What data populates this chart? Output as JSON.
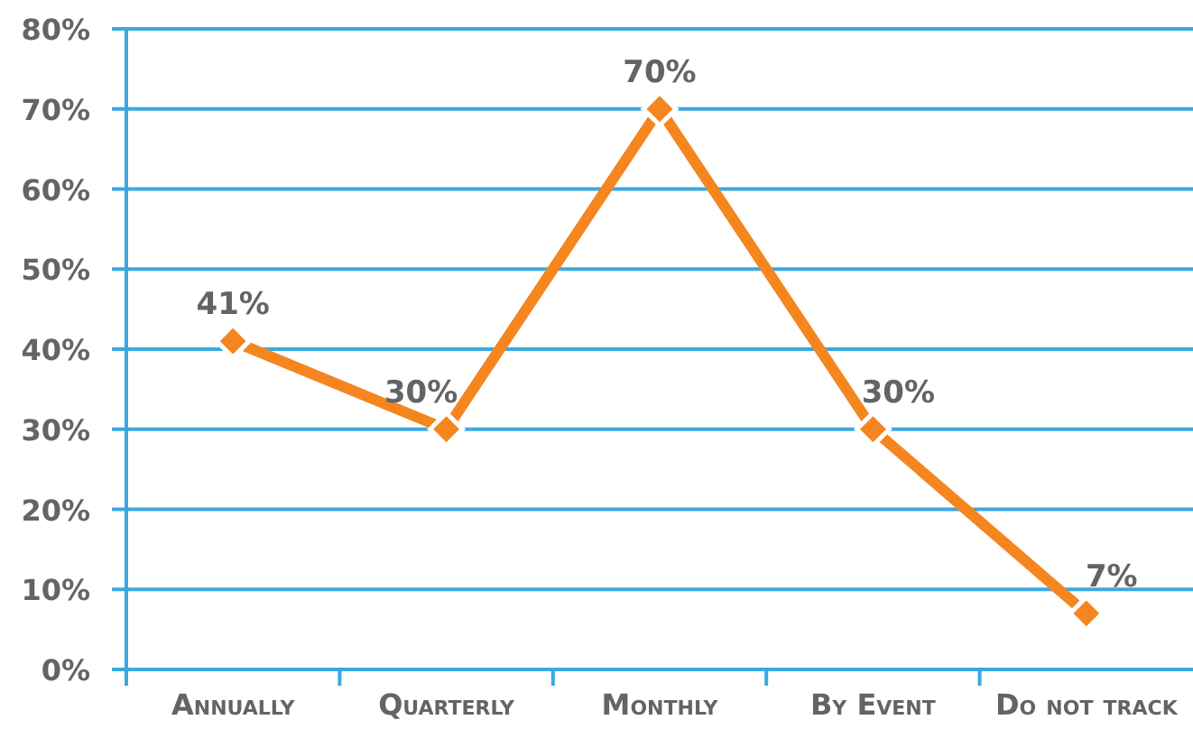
{
  "chart_data": {
    "type": "line",
    "categories": [
      "Annually",
      "Quarterly",
      "Monthly",
      "By Event",
      "Do not track"
    ],
    "series": [
      {
        "color": "#f5861f",
        "values": [
          41,
          30,
          70,
          30,
          7
        ],
        "value_labels": [
          "41%",
          "30%",
          "70%",
          "30%",
          "7%"
        ]
      }
    ],
    "ylim": [
      0,
      80
    ],
    "yticks": [
      {
        "value": 0,
        "label": "0%"
      },
      {
        "value": 10,
        "label": "10%"
      },
      {
        "value": 20,
        "label": "20%"
      },
      {
        "value": 30,
        "label": "30%"
      },
      {
        "value": 40,
        "label": "40%"
      },
      {
        "value": 50,
        "label": "50%"
      },
      {
        "value": 60,
        "label": "60%"
      },
      {
        "value": 70,
        "label": "70%"
      },
      {
        "value": 80,
        "label": "80%"
      }
    ],
    "grid": "y",
    "marker": "diamond",
    "line_style": "solid"
  }
}
